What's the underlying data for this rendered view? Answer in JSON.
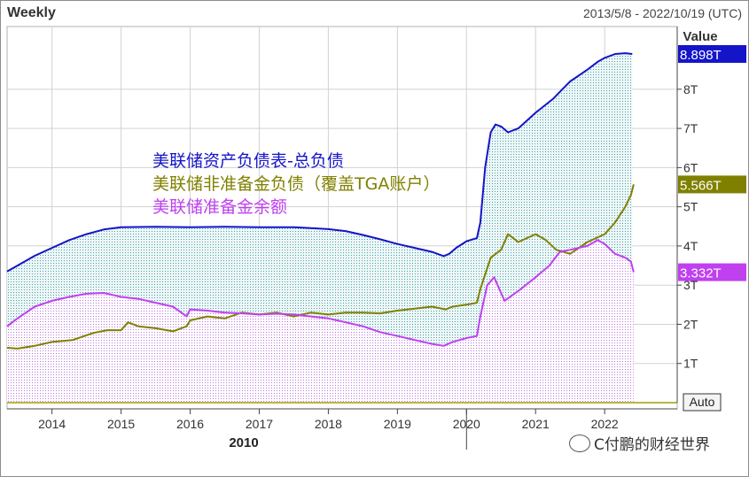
{
  "header": {
    "period": "Weekly",
    "date_range": "2013/5/8 - 2022/10/19 (UTC)"
  },
  "value_label": "Value",
  "auto_button": "Auto",
  "year_marker": "2010",
  "watermark": "C付鹏的财经世界",
  "colors": {
    "total": "#1414c8",
    "nonreserve": "#808000",
    "reserve": "#c040f0",
    "grid": "#d2d2d2",
    "plot_bg": "#ffffff"
  },
  "chart_data": {
    "type": "line",
    "title": "",
    "xlabel": "",
    "ylabel": "Value",
    "xlim": [
      2013.35,
      2023.05
    ],
    "ylim": [
      0,
      9.6
    ],
    "grid": true,
    "y_ticks": [
      "1T",
      "2T",
      "3T",
      "4T",
      "5T",
      "6T",
      "7T",
      "8T"
    ],
    "y_tick_values": [
      1,
      2,
      3,
      4,
      5,
      6,
      7,
      8
    ],
    "x_ticks": [
      "2014",
      "2015",
      "2016",
      "2017",
      "2018",
      "2019",
      "2020",
      "2021",
      "2022"
    ],
    "x_tick_values": [
      2014,
      2015,
      2016,
      2017,
      2018,
      2019,
      2020,
      2021,
      2022
    ],
    "legend_position": "upper-left",
    "series": [
      {
        "name": "美联储资产负债表-总负债",
        "color": "#1414c8",
        "last_label": "8.898T",
        "points": [
          [
            2013.35,
            3.35
          ],
          [
            2013.5,
            3.5
          ],
          [
            2013.75,
            3.75
          ],
          [
            2014.0,
            3.95
          ],
          [
            2014.25,
            4.15
          ],
          [
            2014.5,
            4.3
          ],
          [
            2014.75,
            4.42
          ],
          [
            2015.0,
            4.48
          ],
          [
            2015.5,
            4.49
          ],
          [
            2016.0,
            4.48
          ],
          [
            2016.5,
            4.49
          ],
          [
            2017.0,
            4.48
          ],
          [
            2017.5,
            4.48
          ],
          [
            2017.8,
            4.45
          ],
          [
            2018.0,
            4.43
          ],
          [
            2018.25,
            4.38
          ],
          [
            2018.5,
            4.28
          ],
          [
            2018.75,
            4.17
          ],
          [
            2019.0,
            4.05
          ],
          [
            2019.25,
            3.95
          ],
          [
            2019.5,
            3.85
          ],
          [
            2019.67,
            3.74
          ],
          [
            2019.75,
            3.8
          ],
          [
            2019.85,
            3.95
          ],
          [
            2020.0,
            4.12
          ],
          [
            2020.15,
            4.2
          ],
          [
            2020.2,
            4.6
          ],
          [
            2020.27,
            6.0
          ],
          [
            2020.35,
            6.9
          ],
          [
            2020.42,
            7.1
          ],
          [
            2020.5,
            7.05
          ],
          [
            2020.6,
            6.9
          ],
          [
            2020.75,
            7.0
          ],
          [
            2021.0,
            7.4
          ],
          [
            2021.25,
            7.75
          ],
          [
            2021.5,
            8.2
          ],
          [
            2021.75,
            8.5
          ],
          [
            2021.9,
            8.7
          ],
          [
            2022.0,
            8.8
          ],
          [
            2022.15,
            8.9
          ],
          [
            2022.3,
            8.92
          ],
          [
            2022.4,
            8.9
          ]
        ]
      },
      {
        "name": "美联储非准备金负债（覆盖TGA账户）",
        "color": "#808000",
        "last_label": "5.566T",
        "points": [
          [
            2013.35,
            1.4
          ],
          [
            2013.5,
            1.38
          ],
          [
            2013.75,
            1.45
          ],
          [
            2014.0,
            1.55
          ],
          [
            2014.3,
            1.6
          ],
          [
            2014.6,
            1.78
          ],
          [
            2014.8,
            1.85
          ],
          [
            2015.0,
            1.85
          ],
          [
            2015.1,
            2.05
          ],
          [
            2015.25,
            1.95
          ],
          [
            2015.5,
            1.9
          ],
          [
            2015.75,
            1.82
          ],
          [
            2015.95,
            1.95
          ],
          [
            2016.0,
            2.1
          ],
          [
            2016.25,
            2.2
          ],
          [
            2016.5,
            2.15
          ],
          [
            2016.75,
            2.3
          ],
          [
            2017.0,
            2.25
          ],
          [
            2017.25,
            2.3
          ],
          [
            2017.5,
            2.2
          ],
          [
            2017.75,
            2.3
          ],
          [
            2018.0,
            2.25
          ],
          [
            2018.25,
            2.3
          ],
          [
            2018.5,
            2.3
          ],
          [
            2018.75,
            2.28
          ],
          [
            2019.0,
            2.35
          ],
          [
            2019.25,
            2.4
          ],
          [
            2019.5,
            2.45
          ],
          [
            2019.7,
            2.38
          ],
          [
            2019.8,
            2.45
          ],
          [
            2020.0,
            2.5
          ],
          [
            2020.15,
            2.55
          ],
          [
            2020.2,
            2.9
          ],
          [
            2020.35,
            3.7
          ],
          [
            2020.5,
            3.9
          ],
          [
            2020.6,
            4.3
          ],
          [
            2020.75,
            4.1
          ],
          [
            2021.0,
            4.3
          ],
          [
            2021.15,
            4.15
          ],
          [
            2021.3,
            3.9
          ],
          [
            2021.5,
            3.8
          ],
          [
            2021.75,
            4.1
          ],
          [
            2022.0,
            4.3
          ],
          [
            2022.15,
            4.6
          ],
          [
            2022.3,
            5.0
          ],
          [
            2022.38,
            5.3
          ],
          [
            2022.42,
            5.57
          ]
        ]
      },
      {
        "name": "美联储准备金余额",
        "color": "#c040f0",
        "last_label": "3.332T",
        "points": [
          [
            2013.35,
            1.95
          ],
          [
            2013.5,
            2.15
          ],
          [
            2013.75,
            2.45
          ],
          [
            2014.0,
            2.6
          ],
          [
            2014.25,
            2.7
          ],
          [
            2014.5,
            2.78
          ],
          [
            2014.75,
            2.8
          ],
          [
            2015.0,
            2.7
          ],
          [
            2015.25,
            2.65
          ],
          [
            2015.5,
            2.55
          ],
          [
            2015.75,
            2.45
          ],
          [
            2015.95,
            2.2
          ],
          [
            2016.0,
            2.38
          ],
          [
            2016.25,
            2.35
          ],
          [
            2016.5,
            2.3
          ],
          [
            2016.75,
            2.28
          ],
          [
            2017.0,
            2.25
          ],
          [
            2017.25,
            2.27
          ],
          [
            2017.5,
            2.25
          ],
          [
            2017.75,
            2.2
          ],
          [
            2018.0,
            2.15
          ],
          [
            2018.25,
            2.05
          ],
          [
            2018.5,
            1.95
          ],
          [
            2018.75,
            1.8
          ],
          [
            2019.0,
            1.7
          ],
          [
            2019.25,
            1.6
          ],
          [
            2019.5,
            1.5
          ],
          [
            2019.67,
            1.45
          ],
          [
            2019.8,
            1.55
          ],
          [
            2020.0,
            1.65
          ],
          [
            2020.15,
            1.7
          ],
          [
            2020.2,
            2.2
          ],
          [
            2020.3,
            3.0
          ],
          [
            2020.4,
            3.2
          ],
          [
            2020.5,
            2.8
          ],
          [
            2020.55,
            2.6
          ],
          [
            2020.75,
            2.85
          ],
          [
            2021.0,
            3.2
          ],
          [
            2021.2,
            3.5
          ],
          [
            2021.35,
            3.85
          ],
          [
            2021.5,
            3.9
          ],
          [
            2021.75,
            4.0
          ],
          [
            2021.9,
            4.15
          ],
          [
            2022.0,
            4.05
          ],
          [
            2022.15,
            3.8
          ],
          [
            2022.3,
            3.7
          ],
          [
            2022.38,
            3.6
          ],
          [
            2022.42,
            3.33
          ]
        ]
      }
    ]
  }
}
